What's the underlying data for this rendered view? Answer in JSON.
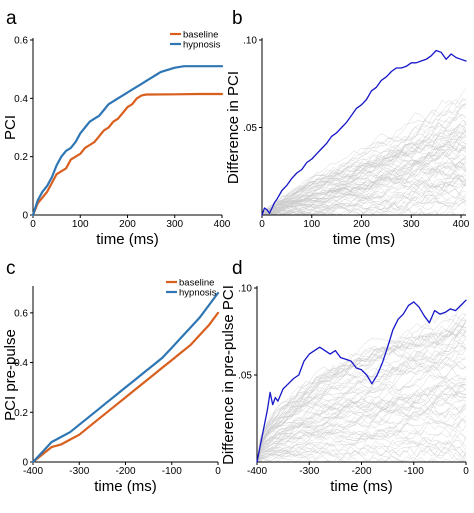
{
  "colors": {
    "baseline": "#d95f1e",
    "hypnosis": "#2e77b4",
    "difference": "#1717c9",
    "null_traces": "#c8c8c8"
  },
  "chart_data": [
    {
      "panel": "a",
      "type": "line",
      "xlabel": "time (ms)",
      "ylabel": "PCI",
      "xlim": [
        0,
        400
      ],
      "ylim": [
        0,
        0.6
      ],
      "xticks": [
        "0",
        "100",
        "200",
        "300",
        "400"
      ],
      "yticks": [
        "0",
        "0.2",
        "0.4",
        "0.6"
      ],
      "legend": {
        "position": "top-right"
      },
      "series": [
        {
          "name": "baseline",
          "x": [
            0,
            10,
            20,
            30,
            40,
            50,
            60,
            70,
            80,
            90,
            100,
            110,
            120,
            130,
            140,
            150,
            160,
            170,
            180,
            190,
            200,
            210,
            220,
            230,
            240,
            250,
            300,
            350,
            400
          ],
          "values": [
            0.0,
            0.04,
            0.06,
            0.08,
            0.11,
            0.14,
            0.15,
            0.16,
            0.19,
            0.2,
            0.21,
            0.23,
            0.24,
            0.25,
            0.27,
            0.29,
            0.3,
            0.32,
            0.33,
            0.35,
            0.37,
            0.38,
            0.4,
            0.41,
            0.413,
            0.413,
            0.414,
            0.415,
            0.415
          ]
        },
        {
          "name": "hypnosis",
          "x": [
            0,
            10,
            20,
            30,
            40,
            50,
            60,
            70,
            80,
            90,
            100,
            110,
            120,
            130,
            140,
            150,
            160,
            170,
            180,
            190,
            200,
            210,
            220,
            230,
            240,
            250,
            260,
            270,
            280,
            290,
            300,
            320,
            350,
            400
          ],
          "values": [
            0.0,
            0.05,
            0.08,
            0.1,
            0.13,
            0.17,
            0.2,
            0.22,
            0.23,
            0.25,
            0.28,
            0.3,
            0.32,
            0.33,
            0.34,
            0.36,
            0.38,
            0.39,
            0.4,
            0.41,
            0.42,
            0.43,
            0.44,
            0.45,
            0.46,
            0.47,
            0.48,
            0.49,
            0.495,
            0.5,
            0.505,
            0.51,
            0.51,
            0.51
          ]
        }
      ]
    },
    {
      "panel": "b",
      "type": "line",
      "xlabel": "time (ms)",
      "ylabel": "Difference in PCI",
      "xlim": [
        0,
        410
      ],
      "ylim": [
        0,
        0.1
      ],
      "xticks": [
        "0",
        "100",
        "200",
        "300",
        "400"
      ],
      "yticks": [
        ".05",
        ".10"
      ],
      "null_distribution": {
        "color": "#c8c8c8",
        "description": "shaded band of surrogate difference traces"
      },
      "series": [
        {
          "x": [
            0,
            5,
            10,
            15,
            20,
            25,
            30,
            40,
            50,
            60,
            70,
            80,
            90,
            100,
            110,
            120,
            130,
            140,
            150,
            160,
            170,
            180,
            190,
            200,
            210,
            220,
            230,
            240,
            250,
            260,
            270,
            280,
            290,
            300,
            310,
            320,
            330,
            340,
            350,
            360,
            370,
            380,
            390,
            400,
            410
          ],
          "values": [
            0.0,
            0.004,
            0.003,
            0.001,
            0.004,
            0.007,
            0.009,
            0.014,
            0.017,
            0.021,
            0.024,
            0.026,
            0.03,
            0.032,
            0.035,
            0.038,
            0.041,
            0.045,
            0.047,
            0.05,
            0.053,
            0.057,
            0.061,
            0.063,
            0.066,
            0.071,
            0.073,
            0.077,
            0.079,
            0.082,
            0.084,
            0.084,
            0.085,
            0.087,
            0.087,
            0.088,
            0.089,
            0.091,
            0.094,
            0.093,
            0.089,
            0.092,
            0.09,
            0.089,
            0.088
          ]
        }
      ]
    },
    {
      "panel": "c",
      "type": "line",
      "xlabel": "time (ms)",
      "ylabel": "PCI pre-pulse",
      "xlim": [
        -400,
        0
      ],
      "ylim": [
        0,
        0.7
      ],
      "xticks": [
        "-400",
        "-300",
        "-200",
        "-100",
        "0"
      ],
      "yticks": [
        "0",
        "0.2",
        "0.4",
        "0.6"
      ],
      "legend": {
        "position": "top-right"
      },
      "series": [
        {
          "name": "baseline",
          "x": [
            -400,
            -380,
            -360,
            -340,
            -320,
            -300,
            -280,
            -260,
            -240,
            -220,
            -200,
            -180,
            -160,
            -140,
            -120,
            -100,
            -80,
            -60,
            -40,
            -20,
            0
          ],
          "values": [
            0.0,
            0.03,
            0.06,
            0.07,
            0.09,
            0.11,
            0.14,
            0.17,
            0.2,
            0.23,
            0.26,
            0.29,
            0.32,
            0.35,
            0.38,
            0.41,
            0.44,
            0.47,
            0.51,
            0.55,
            0.6
          ]
        },
        {
          "name": "hypnosis",
          "x": [
            -400,
            -380,
            -360,
            -340,
            -320,
            -300,
            -280,
            -260,
            -240,
            -220,
            -200,
            -180,
            -160,
            -140,
            -120,
            -100,
            -80,
            -60,
            -40,
            -20,
            0
          ],
          "values": [
            0.0,
            0.04,
            0.08,
            0.1,
            0.12,
            0.15,
            0.18,
            0.21,
            0.24,
            0.27,
            0.3,
            0.33,
            0.36,
            0.39,
            0.42,
            0.46,
            0.5,
            0.54,
            0.58,
            0.63,
            0.68
          ]
        }
      ]
    },
    {
      "panel": "d",
      "type": "line",
      "xlabel": "time (ms)",
      "ylabel": "Difference in pre-pulse PCI",
      "xlim": [
        -400,
        0
      ],
      "ylim": [
        0,
        0.1
      ],
      "xticks": [
        "-400",
        "-300",
        "-200",
        "-100",
        "0"
      ],
      "yticks": [
        ".05",
        ".10"
      ],
      "null_distribution": {
        "color": "#c8c8c8",
        "description": "shaded band of surrogate difference traces"
      },
      "series": [
        {
          "x": [
            -400,
            -390,
            -380,
            -375,
            -370,
            -365,
            -360,
            -350,
            -340,
            -330,
            -320,
            -310,
            -300,
            -290,
            -280,
            -270,
            -260,
            -250,
            -240,
            -230,
            -220,
            -210,
            -200,
            -190,
            -180,
            -170,
            -160,
            -150,
            -140,
            -130,
            -120,
            -110,
            -100,
            -90,
            -80,
            -70,
            -60,
            -50,
            -40,
            -30,
            -20,
            -10,
            0
          ],
          "values": [
            0.0,
            0.015,
            0.03,
            0.04,
            0.033,
            0.037,
            0.035,
            0.042,
            0.045,
            0.048,
            0.05,
            0.058,
            0.062,
            0.064,
            0.066,
            0.064,
            0.062,
            0.064,
            0.06,
            0.059,
            0.058,
            0.054,
            0.053,
            0.05,
            0.045,
            0.05,
            0.057,
            0.066,
            0.076,
            0.082,
            0.085,
            0.09,
            0.092,
            0.089,
            0.084,
            0.08,
            0.087,
            0.085,
            0.086,
            0.088,
            0.087,
            0.09,
            0.093
          ]
        }
      ]
    }
  ]
}
